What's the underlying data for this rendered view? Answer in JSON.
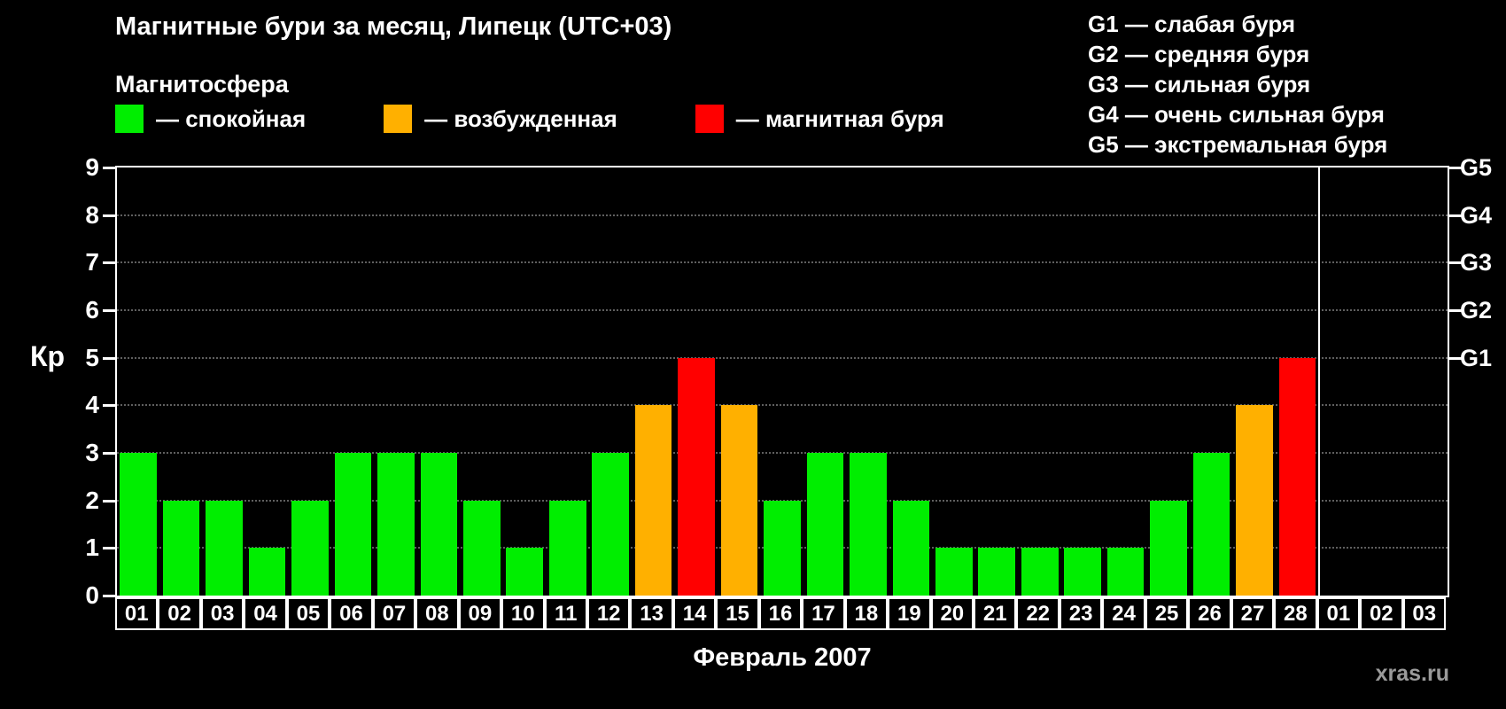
{
  "title": "Магнитные бури за месяц, Липецк (UTC+03)",
  "legend": {
    "header": "Магнитосфера",
    "items": [
      {
        "label": "— спокойная",
        "color": "#00ee00",
        "key": "quiet"
      },
      {
        "label": "— возбужденная",
        "color": "#ffb000",
        "key": "excited"
      },
      {
        "label": "— магнитная буря",
        "color": "#ff0000",
        "key": "storm"
      }
    ]
  },
  "g_legend": [
    "G1 — слабая буря",
    "G2 — средняя буря",
    "G3 — сильная буря",
    "G4 — очень сильная буря",
    "G5 — экстремальная буря"
  ],
  "chart_data": {
    "type": "bar",
    "title": "Магнитные бури за месяц, Липецк (UTC+03)",
    "xlabel": "Февраль 2007",
    "ylabel": "Кр",
    "ylim": [
      0,
      9
    ],
    "yticks": [
      0,
      1,
      2,
      3,
      4,
      5,
      6,
      7,
      8,
      9
    ],
    "grid_values": [
      1,
      2,
      3,
      4,
      5,
      6,
      7,
      8
    ],
    "right_ticks": [
      {
        "label": "G1",
        "value": 5
      },
      {
        "label": "G2",
        "value": 6
      },
      {
        "label": "G3",
        "value": 7
      },
      {
        "label": "G4",
        "value": 8
      },
      {
        "label": "G5",
        "value": 9
      }
    ],
    "categories": [
      "01",
      "02",
      "03",
      "04",
      "05",
      "06",
      "07",
      "08",
      "09",
      "10",
      "11",
      "12",
      "13",
      "14",
      "15",
      "16",
      "17",
      "18",
      "19",
      "20",
      "21",
      "22",
      "23",
      "24",
      "25",
      "26",
      "27",
      "28",
      "01",
      "02",
      "03"
    ],
    "values": [
      3,
      2,
      2,
      1,
      2,
      3,
      3,
      3,
      2,
      1,
      2,
      3,
      4,
      5,
      4,
      2,
      3,
      3,
      2,
      1,
      1,
      1,
      1,
      1,
      2,
      3,
      4,
      5,
      null,
      null,
      null
    ],
    "bar_colors": [
      "quiet",
      "quiet",
      "quiet",
      "quiet",
      "quiet",
      "quiet",
      "quiet",
      "quiet",
      "quiet",
      "quiet",
      "quiet",
      "quiet",
      "excited",
      "storm",
      "excited",
      "quiet",
      "quiet",
      "quiet",
      "quiet",
      "quiet",
      "quiet",
      "quiet",
      "quiet",
      "quiet",
      "quiet",
      "quiet",
      "excited",
      "storm",
      null,
      null,
      null
    ],
    "palette": {
      "quiet": "#00ee00",
      "excited": "#ffb000",
      "storm": "#ff0000"
    },
    "separator_after": 28,
    "legend_position": "top",
    "grid": "horizontal-dotted"
  },
  "watermark": "xras.ru"
}
